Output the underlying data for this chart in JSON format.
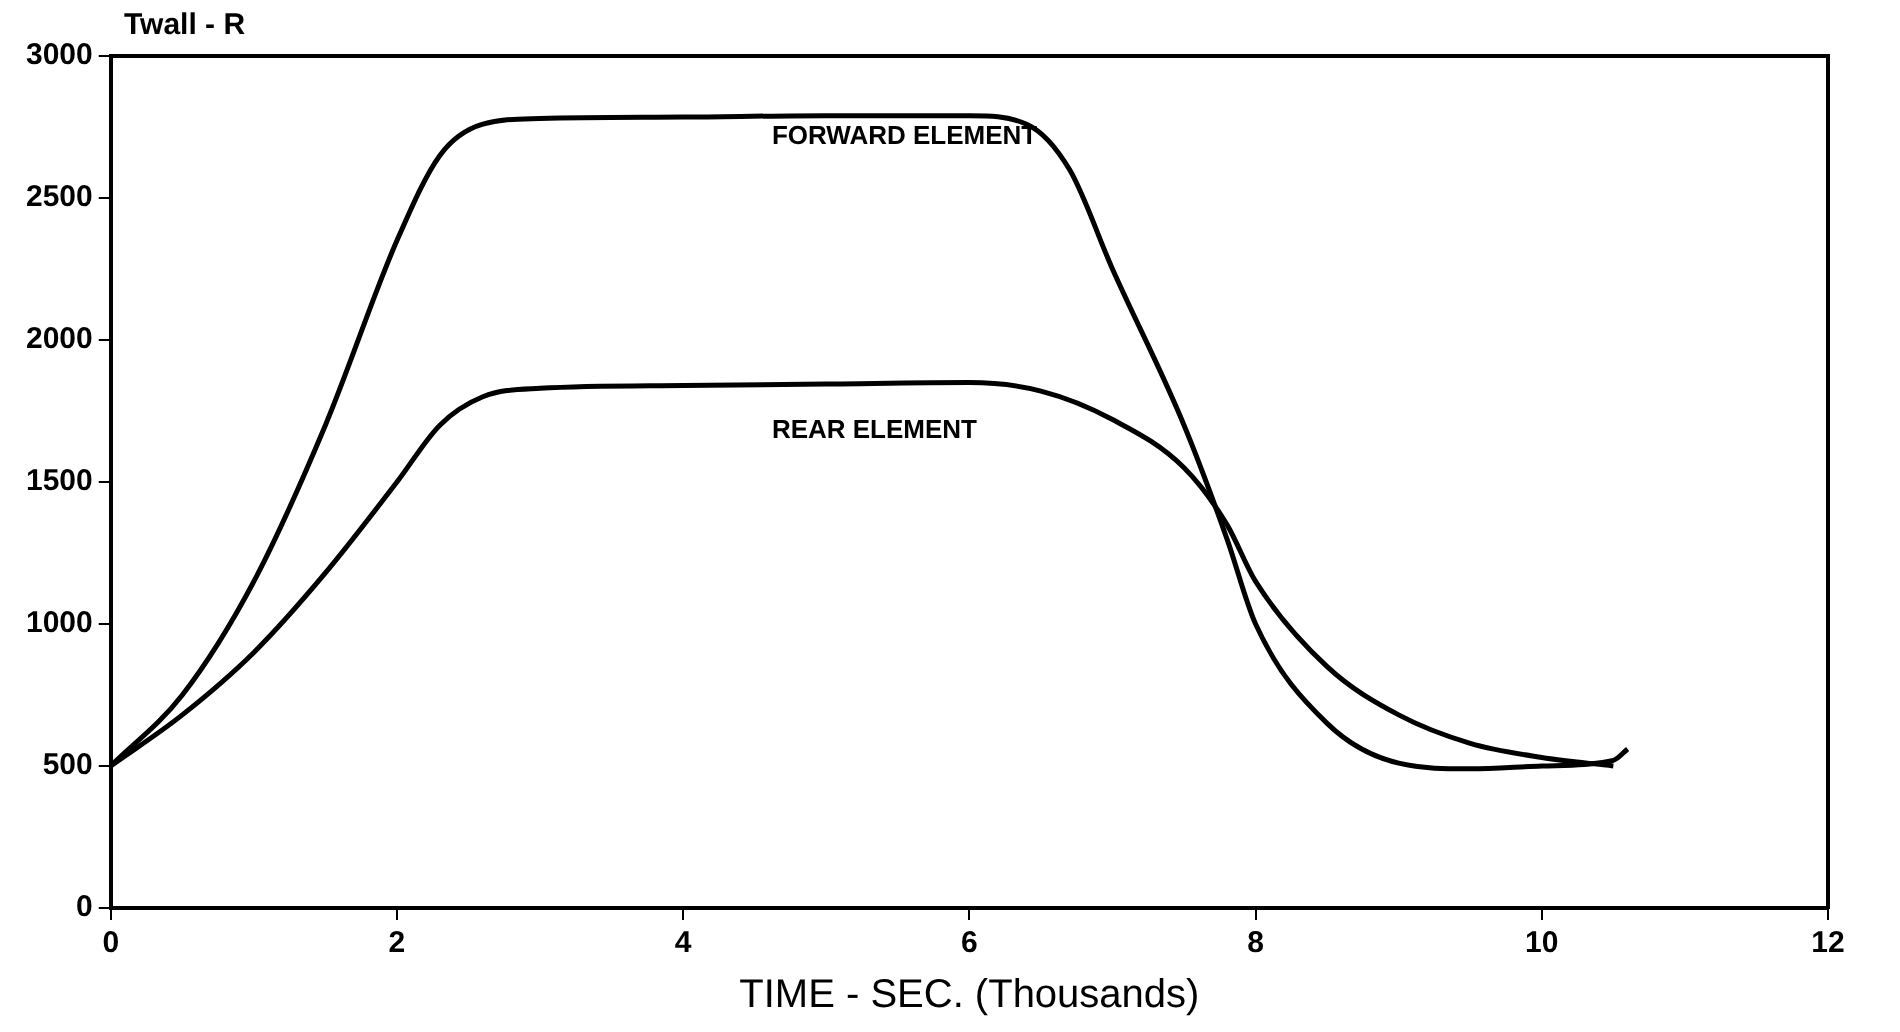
{
  "chart_data": {
    "type": "line",
    "ylabel": "Twall - R",
    "xlabel": "TIME - SEC. (Thousands)",
    "xlim": [
      0,
      12
    ],
    "xticks": [
      0,
      2,
      4,
      6,
      8,
      10,
      12
    ],
    "ylim": [
      0,
      3000
    ],
    "yticks": [
      0,
      500,
      1000,
      1500,
      2000,
      2500,
      3000
    ],
    "grid": false,
    "legend": false,
    "marker": "none",
    "line_style": "solid",
    "series": [
      {
        "color": "#000000",
        "x": [
          0,
          0.5,
          1,
          1.5,
          2,
          2.3,
          2.6,
          3,
          4,
          5,
          6,
          6.4,
          6.7,
          7,
          7.5,
          7.8,
          8,
          8.5,
          9,
          9.5,
          10,
          10.5,
          10.6
        ],
        "values": [
          500,
          750,
          1150,
          1700,
          2350,
          2650,
          2760,
          2780,
          2785,
          2790,
          2790,
          2760,
          2600,
          2250,
          1700,
          1300,
          1000,
          650,
          510,
          490,
          500,
          520,
          560
        ]
      },
      {
        "color": "#000000",
        "x": [
          0,
          0.5,
          1,
          1.5,
          2,
          2.3,
          2.6,
          3,
          4,
          5,
          6,
          6.5,
          7,
          7.5,
          7.8,
          8,
          8.5,
          9,
          9.5,
          10,
          10.5
        ],
        "values": [
          500,
          680,
          900,
          1180,
          1500,
          1700,
          1800,
          1830,
          1840,
          1845,
          1850,
          1820,
          1720,
          1550,
          1350,
          1150,
          850,
          680,
          580,
          530,
          500
        ]
      }
    ],
    "annotations": [
      "FORWARD ELEMENT",
      "REAR ELEMENT"
    ]
  }
}
